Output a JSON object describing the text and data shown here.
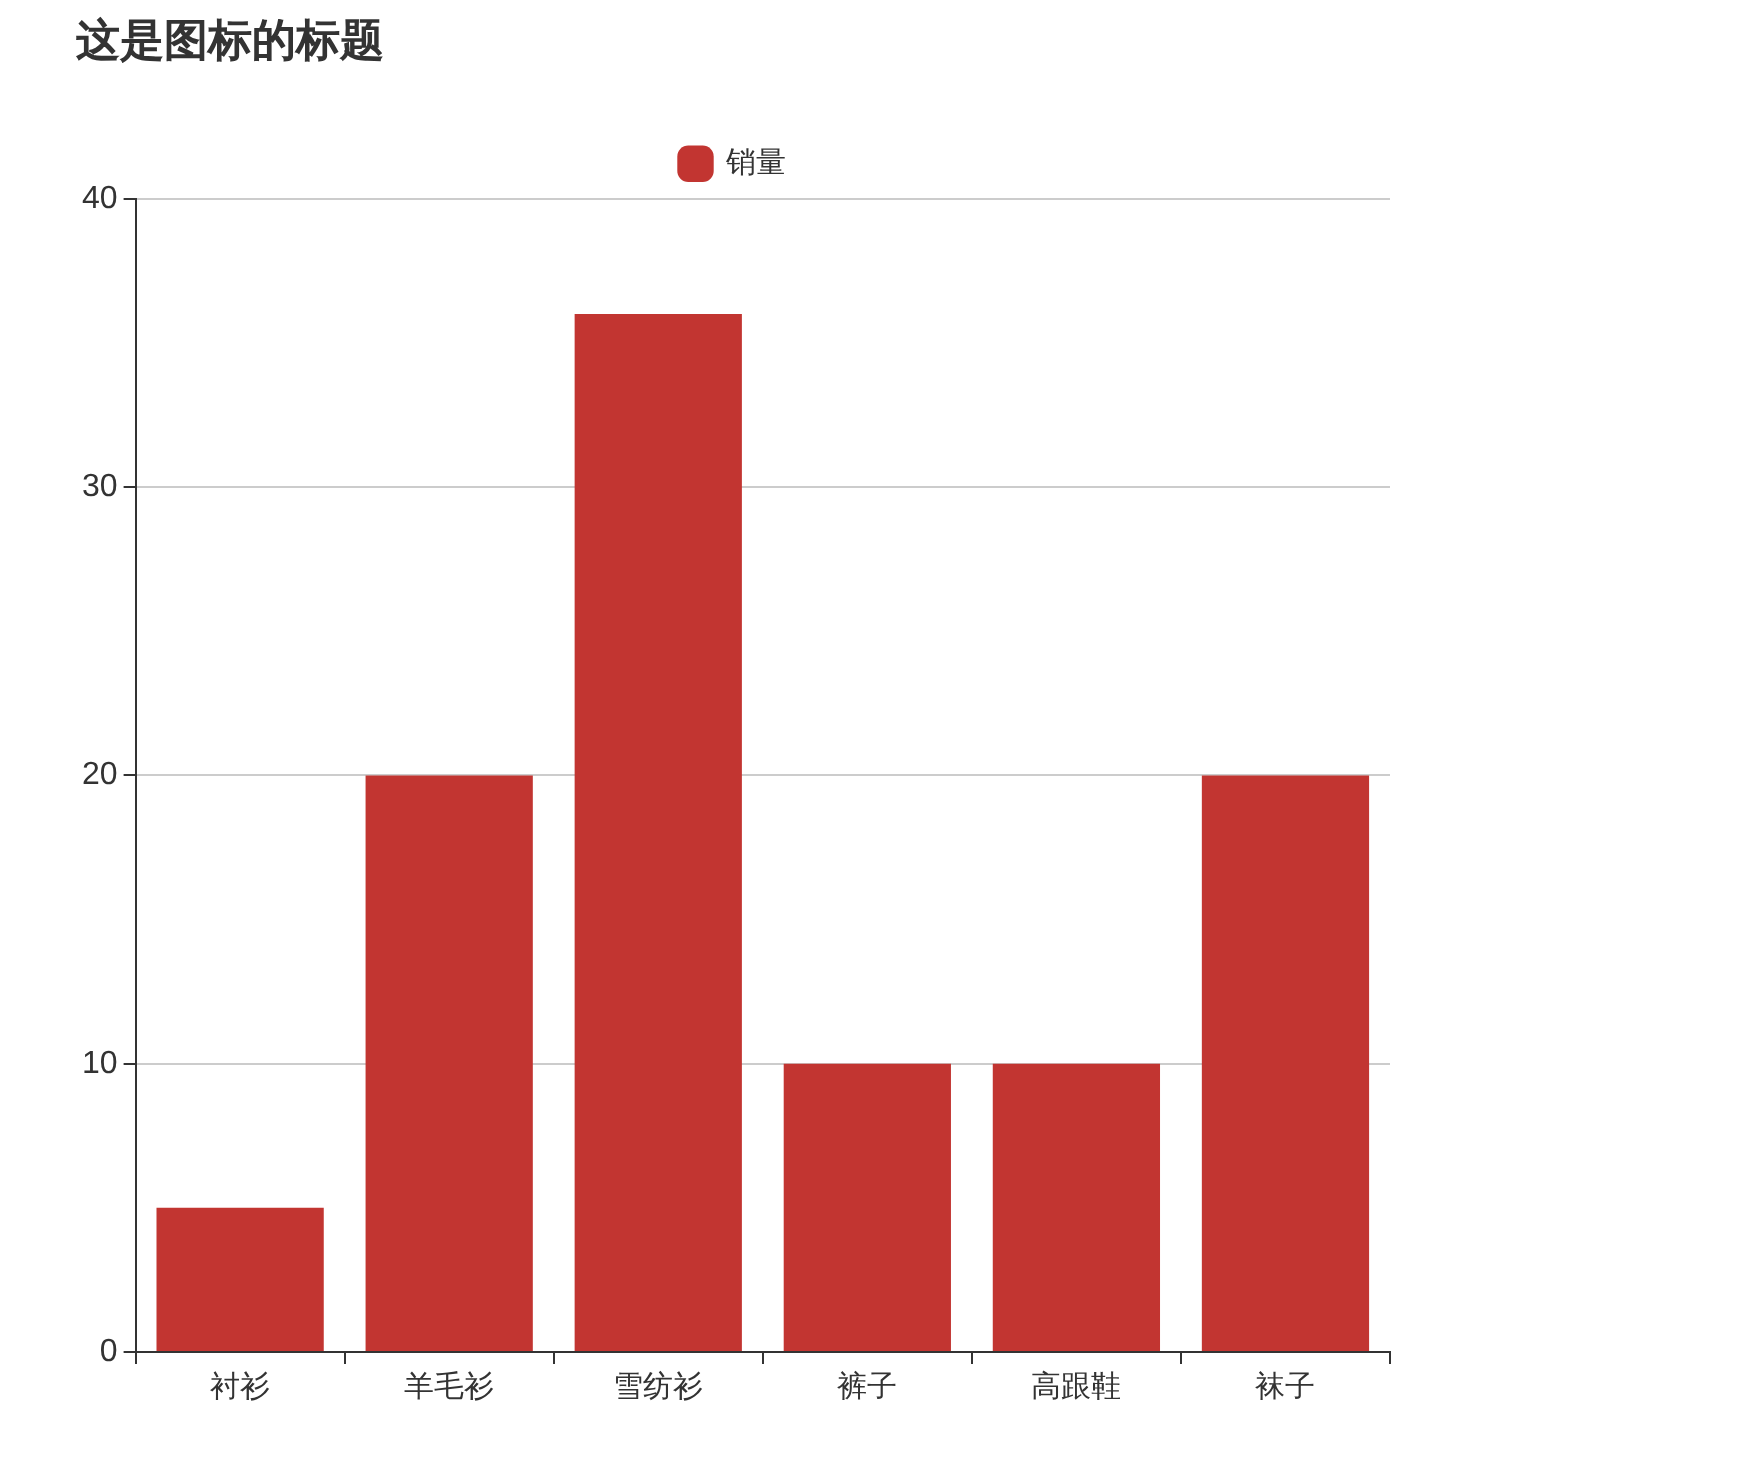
{
  "chart_data": {
    "type": "bar",
    "title": "这是图标的标题",
    "categories": [
      "衬衫",
      "羊毛衫",
      "雪纺衫",
      "裤子",
      "高跟鞋",
      "袜子"
    ],
    "series": [
      {
        "name": "销量",
        "color": "#c23531",
        "values": [
          5,
          20,
          36,
          10,
          10,
          20
        ]
      }
    ],
    "ylim": [
      0,
      40
    ],
    "yticks": [
      0,
      10,
      20,
      30,
      40
    ],
    "grid": "y",
    "legend": "top"
  }
}
